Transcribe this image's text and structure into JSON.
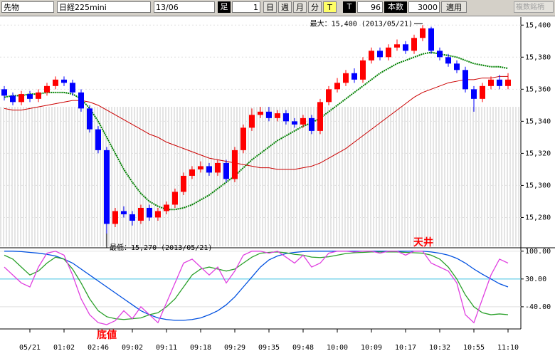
{
  "toolbar": {
    "market": "先物",
    "symbol": "日経225mini",
    "month": "13/06",
    "foot": "足",
    "foot_value": "1",
    "periods": [
      "日",
      "週",
      "月",
      "分",
      "T"
    ],
    "t_label": "T",
    "t_value": "96",
    "count_label": "本数",
    "count_value": "3000",
    "apply": "適用",
    "multi": "複数銘柄"
  },
  "chart_data": [
    {
      "type": "candlestick",
      "annotations": [
        "最大：15,400 (2013/05/21)",
        "最低：15,270 (2013/05/21)"
      ],
      "up_color": "#ff0000",
      "down_color": "#0000ff",
      "open": [
        15360,
        15356,
        15352,
        15357,
        15354,
        15358,
        15362,
        15366,
        15364,
        15358,
        15348,
        15335,
        15322,
        15276,
        15284,
        15282,
        15278,
        15286,
        15280,
        15284,
        15288,
        15296,
        15306,
        15310,
        15312,
        15308,
        15314,
        15304,
        15322,
        15336,
        15344,
        15346,
        15342,
        15345,
        15340,
        15338,
        15342,
        15334,
        15352,
        15360,
        15364,
        15370,
        15366,
        15378,
        15384,
        15380,
        15386,
        15388,
        15384,
        15392,
        15398,
        15384,
        15380,
        15376,
        15372,
        15360,
        15354,
        15362,
        15366,
        15362
      ],
      "high": [
        15362,
        15358,
        15359,
        15359,
        15360,
        15364,
        15368,
        15368,
        15366,
        15360,
        15350,
        15337,
        15324,
        15286,
        15287,
        15284,
        15288,
        15288,
        15286,
        15290,
        15298,
        15308,
        15312,
        15315,
        15314,
        15316,
        15316,
        15324,
        15338,
        15348,
        15349,
        15349,
        15347,
        15347,
        15342,
        15344,
        15344,
        15354,
        15362,
        15367,
        15372,
        15373,
        15380,
        15386,
        15386,
        15388,
        15391,
        15390,
        15394,
        15400,
        15399,
        15386,
        15382,
        15378,
        15374,
        15362,
        15364,
        15368,
        15369,
        15370
      ],
      "low": [
        15353,
        15350,
        15350,
        15352,
        15352,
        15356,
        15360,
        15362,
        15356,
        15346,
        15333,
        15320,
        15270,
        15274,
        15280,
        15275,
        15276,
        15278,
        15278,
        15282,
        15286,
        15294,
        15304,
        15308,
        15306,
        15306,
        15302,
        15302,
        15320,
        15334,
        15342,
        15340,
        15340,
        15338,
        15336,
        15336,
        15332,
        15332,
        15350,
        15358,
        15362,
        15364,
        15364,
        15376,
        15378,
        15378,
        15384,
        15382,
        15382,
        15390,
        15382,
        15378,
        15374,
        15370,
        15358,
        15346,
        15352,
        15360,
        15360,
        15360
      ],
      "close": [
        15356,
        15352,
        15357,
        15354,
        15358,
        15362,
        15366,
        15364,
        15358,
        15348,
        15335,
        15322,
        15276,
        15284,
        15282,
        15278,
        15286,
        15280,
        15284,
        15288,
        15296,
        15306,
        15310,
        15312,
        15308,
        15314,
        15304,
        15322,
        15336,
        15344,
        15346,
        15342,
        15345,
        15340,
        15338,
        15342,
        15334,
        15352,
        15360,
        15364,
        15370,
        15366,
        15378,
        15384,
        15380,
        15386,
        15388,
        15384,
        15392,
        15398,
        15384,
        15380,
        15376,
        15372,
        15360,
        15354,
        15362,
        15366,
        15362,
        15366
      ],
      "series": [
        {
          "color": "#008000",
          "values": [
            15355,
            15356,
            15356,
            15357,
            15357,
            15358,
            15358,
            15358,
            15357,
            15354,
            15348,
            15340,
            15330,
            15320,
            15310,
            15302,
            15295,
            15290,
            15287,
            15285,
            15285,
            15286,
            15288,
            15291,
            15294,
            15298,
            15302,
            15306,
            15311,
            15316,
            15320,
            15324,
            15328,
            15331,
            15334,
            15337,
            15339,
            15342,
            15346,
            15350,
            15354,
            15358,
            15362,
            15366,
            15370,
            15373,
            15376,
            15378,
            15380,
            15382,
            15383,
            15382,
            15381,
            15380,
            15378,
            15376,
            15375,
            15374,
            15374,
            15373
          ]
        },
        {
          "color": "#cc0000",
          "values": [
            15348,
            15347,
            15347,
            15348,
            15349,
            15350,
            15351,
            15352,
            15353,
            15353,
            15352,
            15350,
            15347,
            15344,
            15341,
            15338,
            15335,
            15332,
            15330,
            15327,
            15325,
            15323,
            15321,
            15319,
            15317,
            15316,
            15315,
            15314,
            15313,
            15312,
            15311,
            15311,
            15310,
            15310,
            15310,
            15311,
            15312,
            15314,
            15317,
            15320,
            15323,
            15327,
            15331,
            15335,
            15339,
            15343,
            15347,
            15351,
            15355,
            15358,
            15360,
            15362,
            15364,
            15365,
            15366,
            15366,
            15367,
            15367,
            15368,
            15368
          ]
        }
      ],
      "ylim": [
        15262,
        15405
      ],
      "yticks": [
        {
          "value": 15400,
          "label": "15,400"
        },
        {
          "value": 15380,
          "label": "15,380"
        },
        {
          "value": 15360,
          "label": "15,360"
        },
        {
          "value": 15340,
          "label": "15,340"
        },
        {
          "value": 15320,
          "label": "15,320"
        },
        {
          "value": 15300,
          "label": "15,300"
        },
        {
          "value": 15280,
          "label": "15,280"
        }
      ],
      "grid": true
    },
    {
      "type": "line",
      "annotations": [
        "天井",
        "底値"
      ],
      "categories": [
        null,
        null,
        null,
        "05/21",
        null,
        null,
        null,
        "01:02",
        null,
        null,
        null,
        "02:46",
        null,
        null,
        null,
        "09:02",
        null,
        null,
        null,
        "09:11",
        null,
        null,
        null,
        "09:18",
        null,
        null,
        null,
        "09:29",
        null,
        null,
        null,
        "09:35",
        null,
        null,
        null,
        "09:48",
        null,
        null,
        null,
        "10:00",
        null,
        null,
        null,
        "10:09",
        null,
        null,
        null,
        "10:17",
        null,
        null,
        null,
        "10:32",
        null,
        null,
        null,
        "10:55",
        null,
        null,
        null,
        "11:10"
      ],
      "series": [
        {
          "color": "#0050e0",
          "values": [
            100,
            100,
            99,
            97,
            95,
            92,
            88,
            80,
            70,
            55,
            40,
            25,
            10,
            -5,
            -20,
            -35,
            -50,
            -60,
            -68,
            -72,
            -74,
            -74,
            -72,
            -68,
            -60,
            -50,
            -35,
            -15,
            10,
            35,
            60,
            78,
            88,
            94,
            97,
            99,
            100,
            100,
            100,
            100,
            100,
            100,
            100,
            100,
            100,
            100,
            100,
            100,
            100,
            100,
            98,
            95,
            90,
            82,
            70,
            55,
            42,
            30,
            18,
            10
          ]
        },
        {
          "color": "#2aa02a",
          "values": [
            90,
            80,
            60,
            40,
            50,
            70,
            85,
            80,
            55,
            20,
            -20,
            -50,
            -65,
            -70,
            -72,
            -70,
            -68,
            -60,
            -55,
            -40,
            -20,
            10,
            40,
            55,
            60,
            55,
            50,
            55,
            70,
            85,
            95,
            97,
            98,
            96,
            92,
            90,
            85,
            84,
            86,
            90,
            94,
            96,
            97,
            98,
            98,
            98,
            98,
            97,
            96,
            95,
            90,
            80,
            60,
            30,
            -10,
            -40,
            -55,
            -60,
            -58,
            -60
          ]
        },
        {
          "color": "#e040e0",
          "values": [
            60,
            40,
            20,
            10,
            60,
            95,
            100,
            90,
            40,
            -20,
            -60,
            -80,
            -85,
            -75,
            -50,
            -70,
            -40,
            -60,
            -80,
            -30,
            20,
            70,
            80,
            60,
            40,
            60,
            20,
            50,
            90,
            100,
            100,
            95,
            100,
            85,
            70,
            90,
            60,
            70,
            95,
            100,
            100,
            98,
            100,
            100,
            95,
            100,
            100,
            90,
            100,
            100,
            70,
            60,
            50,
            20,
            -60,
            -80,
            -20,
            40,
            80,
            70
          ]
        }
      ],
      "ylim": [
        -94,
        105
      ],
      "yticks": [
        {
          "value": 100,
          "label": "100.00"
        },
        {
          "value": 30,
          "label": "30.00"
        },
        {
          "value": -40,
          "label": "-40.00"
        }
      ],
      "grid": true
    }
  ]
}
